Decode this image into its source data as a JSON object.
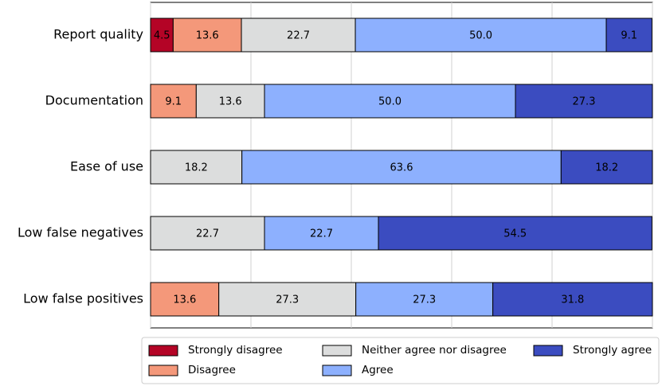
{
  "chart_data": {
    "type": "stacked-bar-horizontal",
    "categories": [
      "Report quality",
      "Documentation",
      "Ease of use",
      "Low false negatives",
      "Low false positives"
    ],
    "series": [
      {
        "name": "Strongly disagree",
        "color": "#b40426",
        "values": [
          4.5,
          null,
          null,
          null,
          null
        ]
      },
      {
        "name": "Disagree",
        "color": "#f4987a",
        "values": [
          13.6,
          9.1,
          null,
          null,
          13.6
        ]
      },
      {
        "name": "Neither agree nor disagree",
        "color": "#dcdddd",
        "values": [
          22.7,
          13.6,
          18.2,
          22.7,
          27.3
        ]
      },
      {
        "name": "Agree",
        "color": "#8db0fe",
        "values": [
          50,
          50,
          63.6,
          22.7,
          27.3
        ],
        "value_labels": [
          "50.0",
          "50.0",
          null,
          null,
          null
        ]
      },
      {
        "name": "Strongly agree",
        "color": "#3b4cc0",
        "values": [
          9.1,
          27.3,
          18.2,
          54.5,
          31.8
        ]
      }
    ],
    "xlim": [
      0,
      100
    ],
    "xticks": [
      0,
      20,
      40,
      60,
      80,
      100
    ],
    "grid": true,
    "legend": "bottom"
  }
}
